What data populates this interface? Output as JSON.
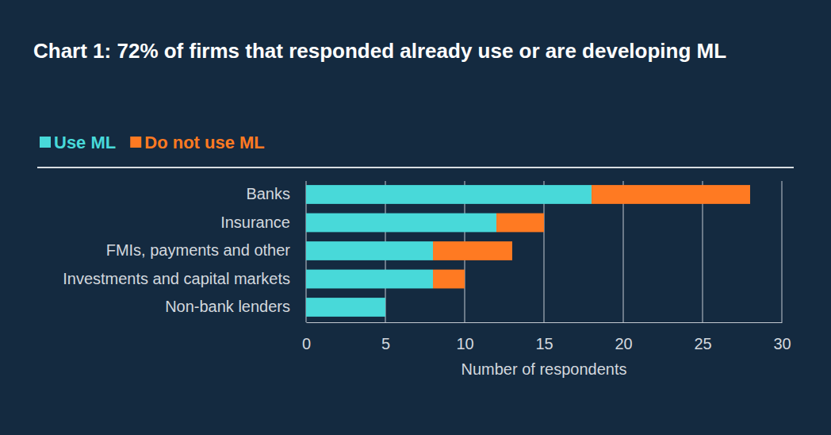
{
  "chart_data": {
    "type": "bar",
    "title": "Chart 1: 72% of firms that responded already use or are developing ML",
    "orientation": "horizontal",
    "stacked": true,
    "grid": true,
    "legend": "top-left",
    "categories": [
      "Banks",
      "Insurance",
      "FMIs, payments and other",
      "Investments and capital markets",
      "Non-bank lenders"
    ],
    "series": [
      {
        "name": "Use ML",
        "color": "#48d9d9",
        "values": [
          18,
          12,
          8,
          8,
          5
        ]
      },
      {
        "name": "Do not use ML",
        "color": "#ff7a22",
        "values": [
          10,
          3,
          5,
          2,
          0
        ]
      }
    ],
    "xlim": [
      0,
      30
    ],
    "xticks": [
      0,
      5,
      10,
      15,
      20,
      25,
      30
    ],
    "x_label": "Number of respondents"
  }
}
